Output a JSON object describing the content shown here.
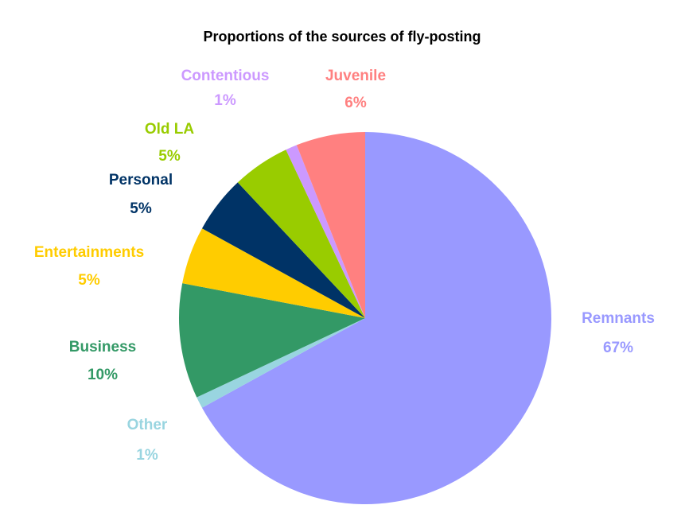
{
  "chart_data": {
    "type": "pie",
    "title": "Proportions of the sources of fly-posting",
    "categories": [
      "Remnants",
      "Other",
      "Business",
      "Entertainments",
      "Personal",
      "Old LA",
      "Contentious",
      "Juvenile"
    ],
    "values": [
      67,
      1,
      10,
      5,
      5,
      5,
      1,
      6
    ],
    "value_labels": [
      "67%",
      "1%",
      "10%",
      "5%",
      "5%",
      "5%",
      "1%",
      "6%"
    ],
    "colors": [
      "#9999ff",
      "#99d5e0",
      "#339966",
      "#ffcc00",
      "#003366",
      "#99cc00",
      "#cc99ff",
      "#ff8080"
    ]
  }
}
